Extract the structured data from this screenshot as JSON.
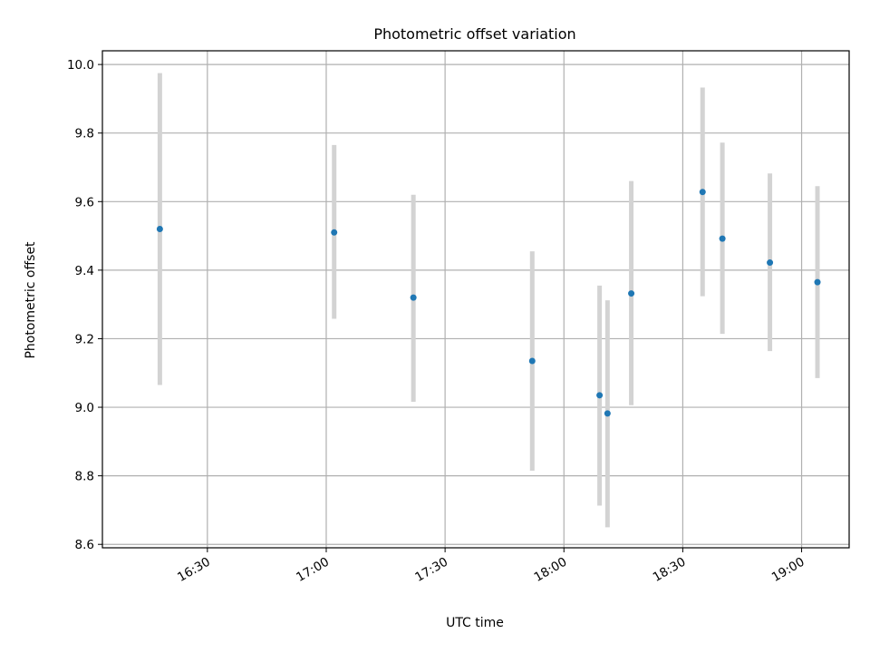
{
  "chart_data": {
    "type": "scatter",
    "title": "Photometric offset variation",
    "xlabel": "UTC time",
    "ylabel": "Photometric offset",
    "x_tick_labels": [
      "16:30",
      "17:00",
      "17:30",
      "18:00",
      "18:30",
      "19:00"
    ],
    "x_ticks_minutes": [
      990,
      1020,
      1050,
      1080,
      1110,
      1140
    ],
    "xlim_minutes": [
      963.5,
      1152
    ],
    "y_tick_labels": [
      "8.6",
      "8.8",
      "9.0",
      "9.2",
      "9.4",
      "9.6",
      "9.8",
      "10.0"
    ],
    "y_ticks": [
      8.6,
      8.8,
      9.0,
      9.2,
      9.4,
      9.6,
      9.8,
      10.0
    ],
    "ylim": [
      8.59,
      10.04
    ],
    "grid": true,
    "series": [
      {
        "x": [
          "16:18",
          "17:02",
          "17:22",
          "17:52",
          "18:09",
          "18:11",
          "18:17",
          "18:35",
          "18:40",
          "18:52",
          "19:04"
        ],
        "x_minutes": [
          978,
          1022,
          1042,
          1072,
          1089,
          1091,
          1097,
          1115,
          1120,
          1132,
          1144
        ],
        "y": [
          9.52,
          9.51,
          9.32,
          9.135,
          9.035,
          8.982,
          9.332,
          9.628,
          9.492,
          9.422,
          9.365
        ],
        "err_low": [
          9.065,
          9.258,
          9.016,
          8.815,
          8.713,
          8.65,
          9.006,
          9.324,
          9.214,
          9.164,
          9.085
        ],
        "err_high": [
          9.975,
          9.765,
          9.62,
          9.455,
          9.355,
          9.312,
          9.66,
          9.933,
          9.772,
          9.682,
          9.645
        ]
      }
    ],
    "colors": {
      "marker": "#1f77b4",
      "errorbar": "#d3d3d3",
      "grid": "#b0b0b0",
      "axes": "#000000"
    }
  }
}
